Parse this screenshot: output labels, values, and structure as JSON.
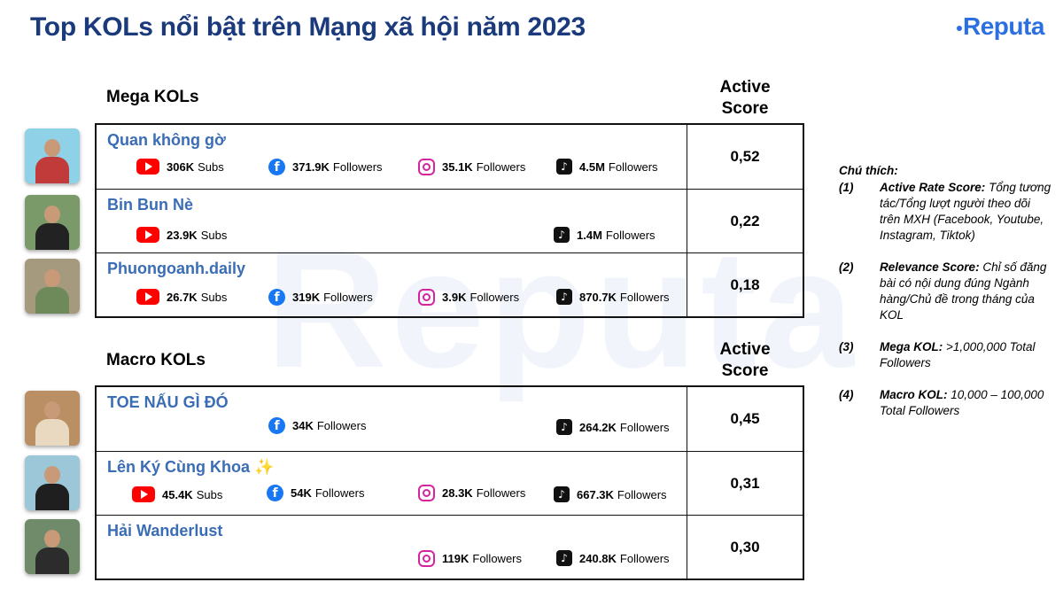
{
  "title": "Top KOLs nổi bật trên Mạng xã hội năm 2023",
  "logo": "Reputa",
  "watermark": "Reputa",
  "sections": [
    {
      "label": "Mega KOLs",
      "score_header": [
        "Active",
        "Score"
      ],
      "rows": [
        {
          "name": "Quan không gờ",
          "score": "0,52",
          "youtube": {
            "value": "306K",
            "unit": "Subs"
          },
          "facebook": {
            "value": "371.9K",
            "unit": "Followers"
          },
          "instagram": {
            "value": "35.1K",
            "unit": "Followers"
          },
          "tiktok": {
            "value": "4.5M",
            "unit": "Followers"
          }
        },
        {
          "name": "Bin Bun Nè",
          "score": "0,22",
          "youtube": {
            "value": "23.9K",
            "unit": "Subs"
          },
          "tiktok": {
            "value": "1.4M",
            "unit": "Followers"
          }
        },
        {
          "name": "Phuongoanh.daily",
          "score": "0,18",
          "youtube": {
            "value": "26.7K",
            "unit": "Subs"
          },
          "facebook": {
            "value": "319K",
            "unit": "Followers"
          },
          "instagram": {
            "value": "3.9K",
            "unit": "Followers"
          },
          "tiktok": {
            "value": "870.7K",
            "unit": "Followers"
          }
        }
      ]
    },
    {
      "label": "Macro KOLs",
      "score_header": [
        "Active",
        "Score"
      ],
      "rows": [
        {
          "name": "TOE NẤU GÌ ĐÓ",
          "score": "0,45",
          "facebook": {
            "value": "34K",
            "unit": "Followers"
          },
          "tiktok": {
            "value": "264.2K",
            "unit": "Followers"
          }
        },
        {
          "name": "Lên Ký Cùng Khoa ✨",
          "score": "0,31",
          "youtube": {
            "value": "45.4K",
            "unit": "Subs"
          },
          "facebook": {
            "value": "54K",
            "unit": "Followers"
          },
          "instagram": {
            "value": "28.3K",
            "unit": "Followers"
          },
          "tiktok": {
            "value": "667.3K",
            "unit": "Followers"
          }
        },
        {
          "name": "Hải Wanderlust",
          "score": "0,30",
          "instagram": {
            "value": "119K",
            "unit": "Followers"
          },
          "tiktok": {
            "value": "240.8K",
            "unit": "Followers"
          }
        }
      ]
    }
  ],
  "legend": {
    "title": "Chú thích:",
    "items": [
      {
        "num": "(1)",
        "term": "Active Rate Score:",
        "desc": "Tổng tương tác/Tổng lượt người theo dõi trên MXH (Facebook, Youtube, Instagram, Tiktok)"
      },
      {
        "num": "(2)",
        "term": "Relevance Score:",
        "desc": "Chỉ số đăng bài có nội dung đúng Ngành hàng/Chủ đề trong tháng của KOL"
      },
      {
        "num": "(3)",
        "term": "Mega KOL:",
        "desc": ">1,000,000 Total Followers"
      },
      {
        "num": "(4)",
        "term": "Macro KOL:",
        "desc": "10,000 – 100,000 Total Followers"
      }
    ]
  },
  "colors": {
    "title": "#1a3a7c",
    "name": "#3a6db5",
    "logo": "#2b6fe0",
    "youtube": "#ff0000",
    "facebook": "#1877f2",
    "instagram": "#d6249f",
    "tiktok": "#111111"
  },
  "icons": {
    "youtube": "youtube-icon",
    "facebook": "facebook-icon",
    "instagram": "instagram-icon",
    "tiktok": "tiktok-icon"
  }
}
